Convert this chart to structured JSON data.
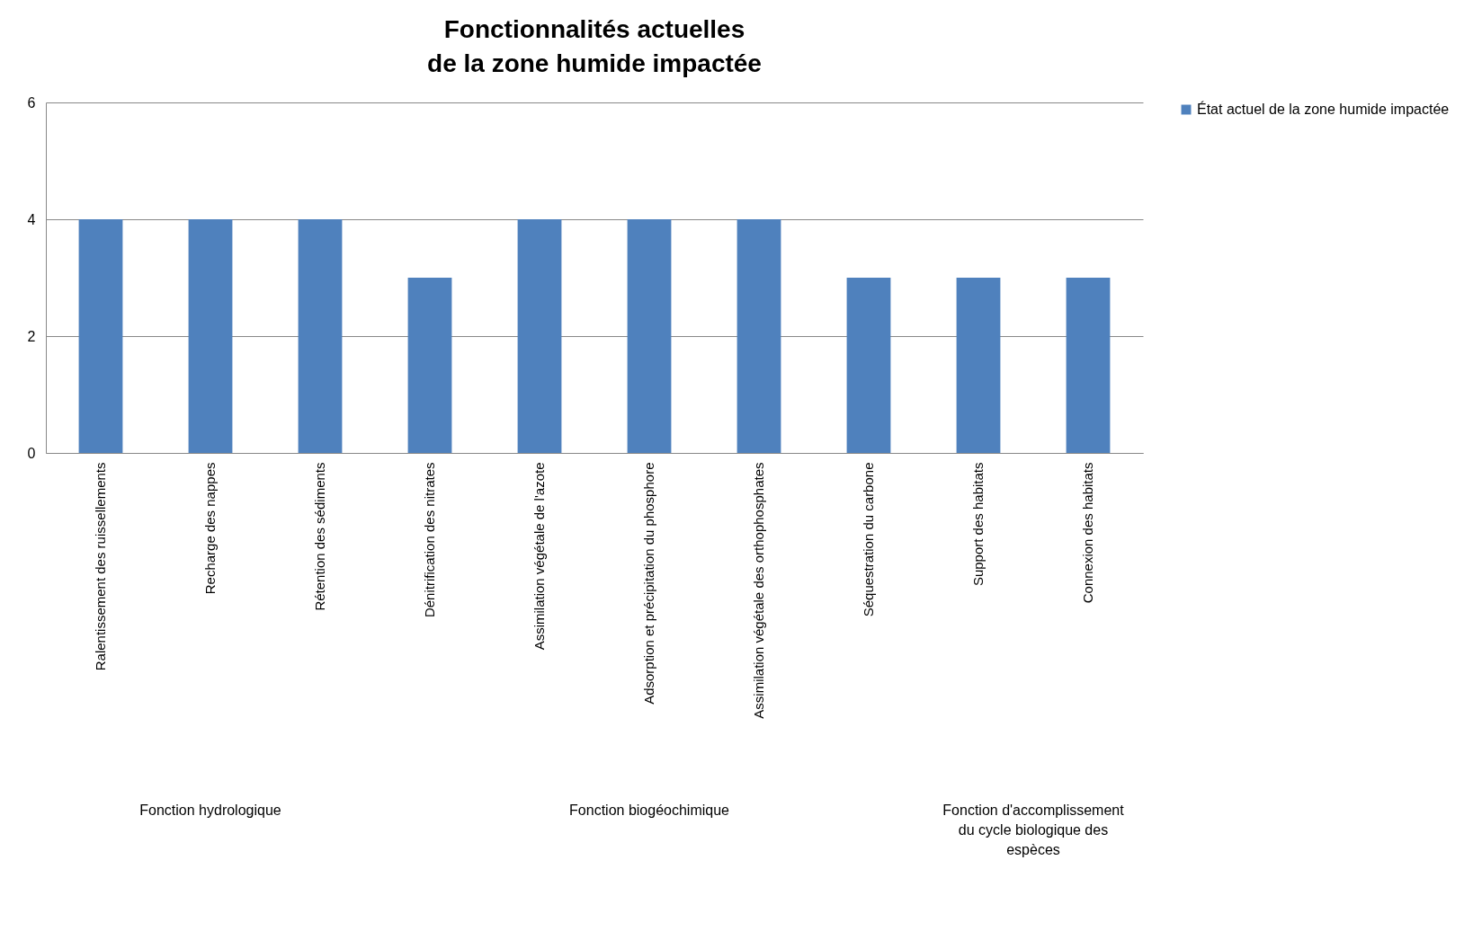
{
  "chart_data": {
    "type": "bar",
    "title": "Fonctionnalités actuelles\nde la zone humide impactée",
    "categories": [
      "Ralentissement des ruissellements",
      "Recharge des nappes",
      "Rétention des sédiments",
      "Dénitrification des nitrates",
      "Assimilation végétale de l'azote",
      "Adsorption et précipitation du phosphore",
      "Assimilation végétale des orthophosphates",
      "Séquestration du carbone",
      "Support des habitats",
      "Connexion des habitats"
    ],
    "series": [
      {
        "name": "État actuel de la zone humide impactée",
        "color": "#4f81bd",
        "values": [
          4,
          4,
          4,
          3,
          4,
          4,
          4,
          3,
          3,
          3
        ]
      }
    ],
    "ylim": [
      0,
      6
    ],
    "yticks": [
      0,
      2,
      4,
      6
    ],
    "grid": "y",
    "legend": "right",
    "annotations": [
      "Fonction hydrologique",
      "Fonction biogéochimique",
      "Fonction d'accomplissement du cycle biologique des espèces"
    ]
  }
}
